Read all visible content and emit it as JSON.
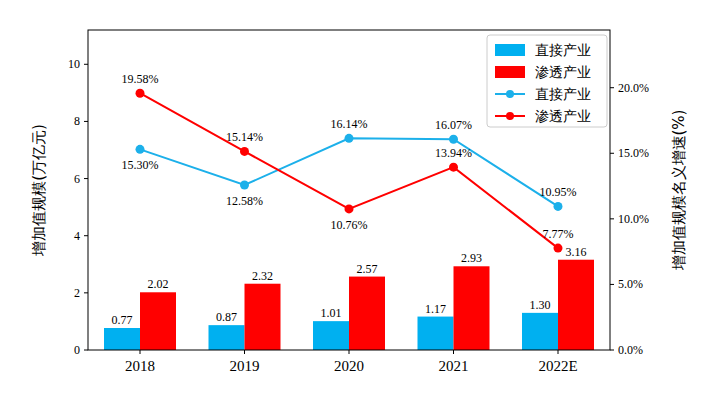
{
  "chart_data": {
    "type": "bar",
    "y_label": "增加值规模(万亿元)",
    "y2_label": "增加值规模名义增速(%)",
    "categories": [
      "2018",
      "2019",
      "2020",
      "2021",
      "2022E"
    ],
    "series": [
      {
        "name": "直接产业",
        "type": "bar",
        "color": "#00b0f0",
        "values": [
          0.77,
          0.87,
          1.01,
          1.17,
          1.3
        ],
        "value_labels": [
          "0.77",
          "0.87",
          "1.01",
          "1.17",
          "1.30"
        ]
      },
      {
        "name": "渗透产业",
        "type": "bar",
        "color": "#ff0000",
        "values": [
          2.02,
          2.32,
          2.57,
          2.93,
          3.16
        ],
        "value_labels": [
          "2.02",
          "2.32",
          "2.57",
          "2.93",
          "3.16"
        ]
      },
      {
        "name": "直接产业",
        "type": "line",
        "axis": "y2",
        "color": "#1cb0ea",
        "marker": "circle",
        "values": [
          15.3,
          12.58,
          16.14,
          16.07,
          10.95
        ],
        "value_labels": [
          "15.30%",
          "12.58%",
          "16.14%",
          "16.07%",
          "10.95%"
        ]
      },
      {
        "name": "渗透产业",
        "type": "line",
        "axis": "y2",
        "color": "#ff0000",
        "marker": "circle",
        "values": [
          19.58,
          15.14,
          10.76,
          13.94,
          7.77
        ],
        "value_labels": [
          "19.58%",
          "15.14%",
          "10.76%",
          "13.94%",
          "7.77%"
        ]
      }
    ],
    "ylim": [
      0,
      11.2
    ],
    "yticks": [
      0,
      2,
      4,
      6,
      8,
      10
    ],
    "y2lim": [
      0,
      24.4
    ],
    "y2ticks": [
      {
        "value": 0,
        "label": "0.0%"
      },
      {
        "value": 5,
        "label": "5.0%"
      },
      {
        "value": 10,
        "label": "10.0%"
      },
      {
        "value": 15,
        "label": "15.0%"
      },
      {
        "value": 20,
        "label": "20.0%"
      }
    ],
    "grid": false,
    "legend": "upper right",
    "data_labels": true
  }
}
